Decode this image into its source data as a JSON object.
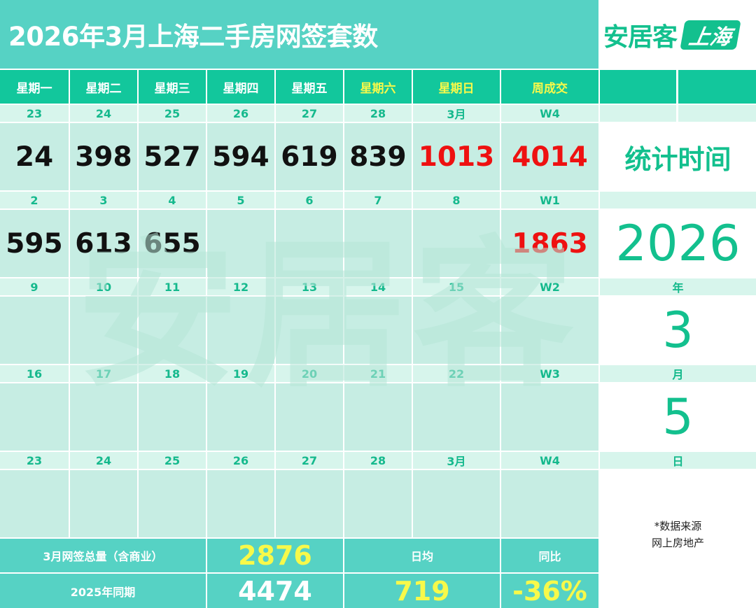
{
  "title": "2026年3月上海二手房网签套数",
  "logo": {
    "brand": "安居客",
    "city": "上海"
  },
  "weekday_headers": [
    "星期一",
    "星期二",
    "星期三",
    "星期四",
    "星期五",
    "星期六",
    "星期日",
    "周成交"
  ],
  "weeks": [
    {
      "dates": [
        "23",
        "24",
        "25",
        "26",
        "27",
        "28",
        "3月",
        "W4"
      ],
      "values": [
        "24",
        "398",
        "527",
        "594",
        "619",
        "839",
        "1013",
        "4014"
      ]
    },
    {
      "dates": [
        "2",
        "3",
        "4",
        "5",
        "6",
        "7",
        "8",
        "W1"
      ],
      "values": [
        "595",
        "613",
        "655",
        "",
        "",
        "",
        "",
        "1863"
      ]
    },
    {
      "dates": [
        "9",
        "10",
        "11",
        "12",
        "13",
        "14",
        "15",
        "W2"
      ],
      "values": [
        "",
        "",
        "",
        "",
        "",
        "",
        "",
        ""
      ]
    },
    {
      "dates": [
        "16",
        "17",
        "18",
        "19",
        "20",
        "21",
        "22",
        "W3"
      ],
      "values": [
        "",
        "",
        "",
        "",
        "",
        "",
        "",
        ""
      ]
    },
    {
      "dates": [
        "23",
        "24",
        "25",
        "26",
        "27",
        "28",
        "3月",
        "W4"
      ],
      "values": [
        "",
        "",
        "",
        "",
        "",
        "",
        "",
        ""
      ]
    }
  ],
  "side": {
    "stat_time_label": "统计时间",
    "year": "2026",
    "year_unit": "年",
    "month": "3",
    "month_unit": "月",
    "day": "5",
    "day_unit": "日",
    "source_line1": "*数据来源",
    "source_line2": "网上房地产"
  },
  "footer": {
    "total_label": "3月网签总量（含商业）",
    "total_value": "2876",
    "daily_avg_label": "日均",
    "yoy_label": "同比",
    "last_year_label": "2025年同期",
    "last_year_value": "4474",
    "daily_avg_value": "719",
    "yoy_value": "-36%"
  },
  "watermark": "安居客",
  "colors": {
    "header_green": "#12c79c",
    "title_teal": "#56d2c4",
    "cell_bg": "#c6ede3",
    "date_bg": "#d7f5ec",
    "highlight_red": "#ee1111",
    "highlight_yellow": "#f7f94a"
  }
}
